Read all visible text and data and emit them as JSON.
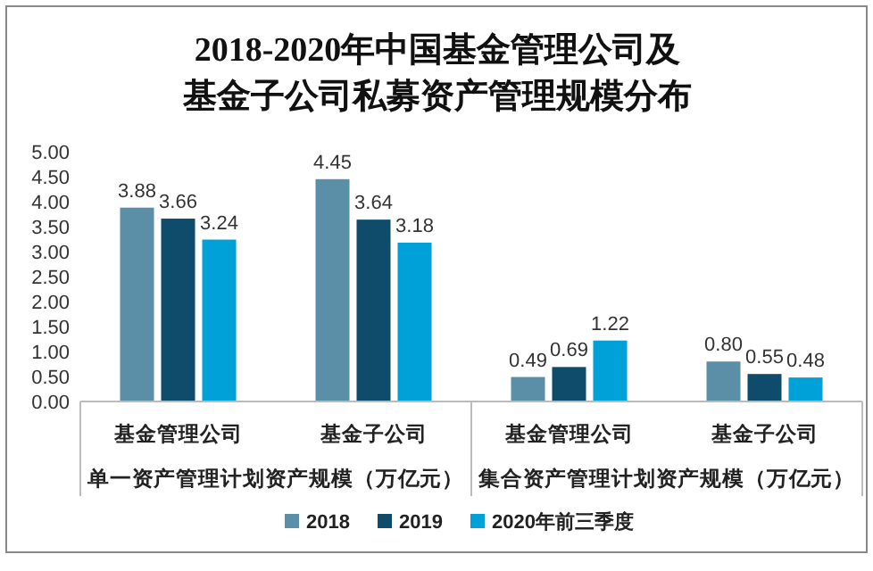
{
  "chart_data": {
    "type": "bar",
    "title": "2018-2020年中国基金管理公司及基金子公司私募资产管理规模分布",
    "categories": [
      "基金管理公司",
      "基金子公司",
      "基金管理公司",
      "基金子公司"
    ],
    "series": [
      {
        "name": "2018",
        "color": "#5b8fa8",
        "values": [
          3.88,
          4.45,
          0.49,
          0.8
        ],
        "value_labels": [
          "3.88",
          "4.45",
          "0.49",
          "0.80"
        ]
      },
      {
        "name": "2019",
        "color": "#0f4c6b",
        "values": [
          3.66,
          3.64,
          0.69,
          0.55
        ],
        "value_labels": [
          "3.66",
          "3.64",
          "0.69",
          "0.55"
        ]
      },
      {
        "name": "2020年前三季度",
        "color": "#00a0d8",
        "values": [
          3.24,
          3.18,
          1.22,
          0.48
        ],
        "value_labels": [
          "3.24",
          "3.18",
          "1.22",
          "0.48"
        ]
      }
    ],
    "annotations": [
      "单一资产管理计划资产规模（万亿元）",
      "集合资产管理计划资产规模（万亿元）"
    ],
    "ylim": [
      0,
      5
    ],
    "yticks": [
      {
        "value": 0,
        "label": "0.00"
      },
      {
        "value": 0.5,
        "label": "0.50"
      },
      {
        "value": 1,
        "label": "1.00"
      },
      {
        "value": 1.5,
        "label": "1.50"
      },
      {
        "value": 2,
        "label": "2.00"
      },
      {
        "value": 2.5,
        "label": "2.50"
      },
      {
        "value": 3,
        "label": "3.00"
      },
      {
        "value": 3.5,
        "label": "3.50"
      },
      {
        "value": 4,
        "label": "4.00"
      },
      {
        "value": 4.5,
        "label": "4.50"
      },
      {
        "value": 5,
        "label": "5.00"
      }
    ],
    "grid": false,
    "legend": "bottom"
  }
}
